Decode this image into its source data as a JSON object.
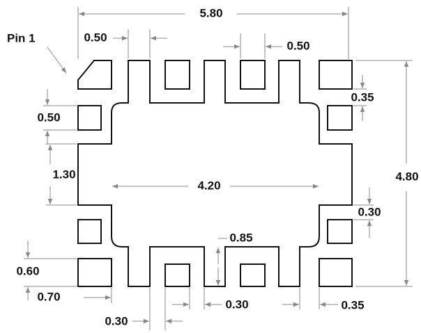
{
  "pin_label": "Pin 1",
  "dimensions": [
    "5.80",
    "0.50",
    "0.50",
    "0.35",
    "0.50",
    "1.30",
    "4.20",
    "4.80",
    "0.30",
    "0.85",
    "0.60",
    "0.70",
    "0.30",
    "0.30",
    "0.35"
  ]
}
